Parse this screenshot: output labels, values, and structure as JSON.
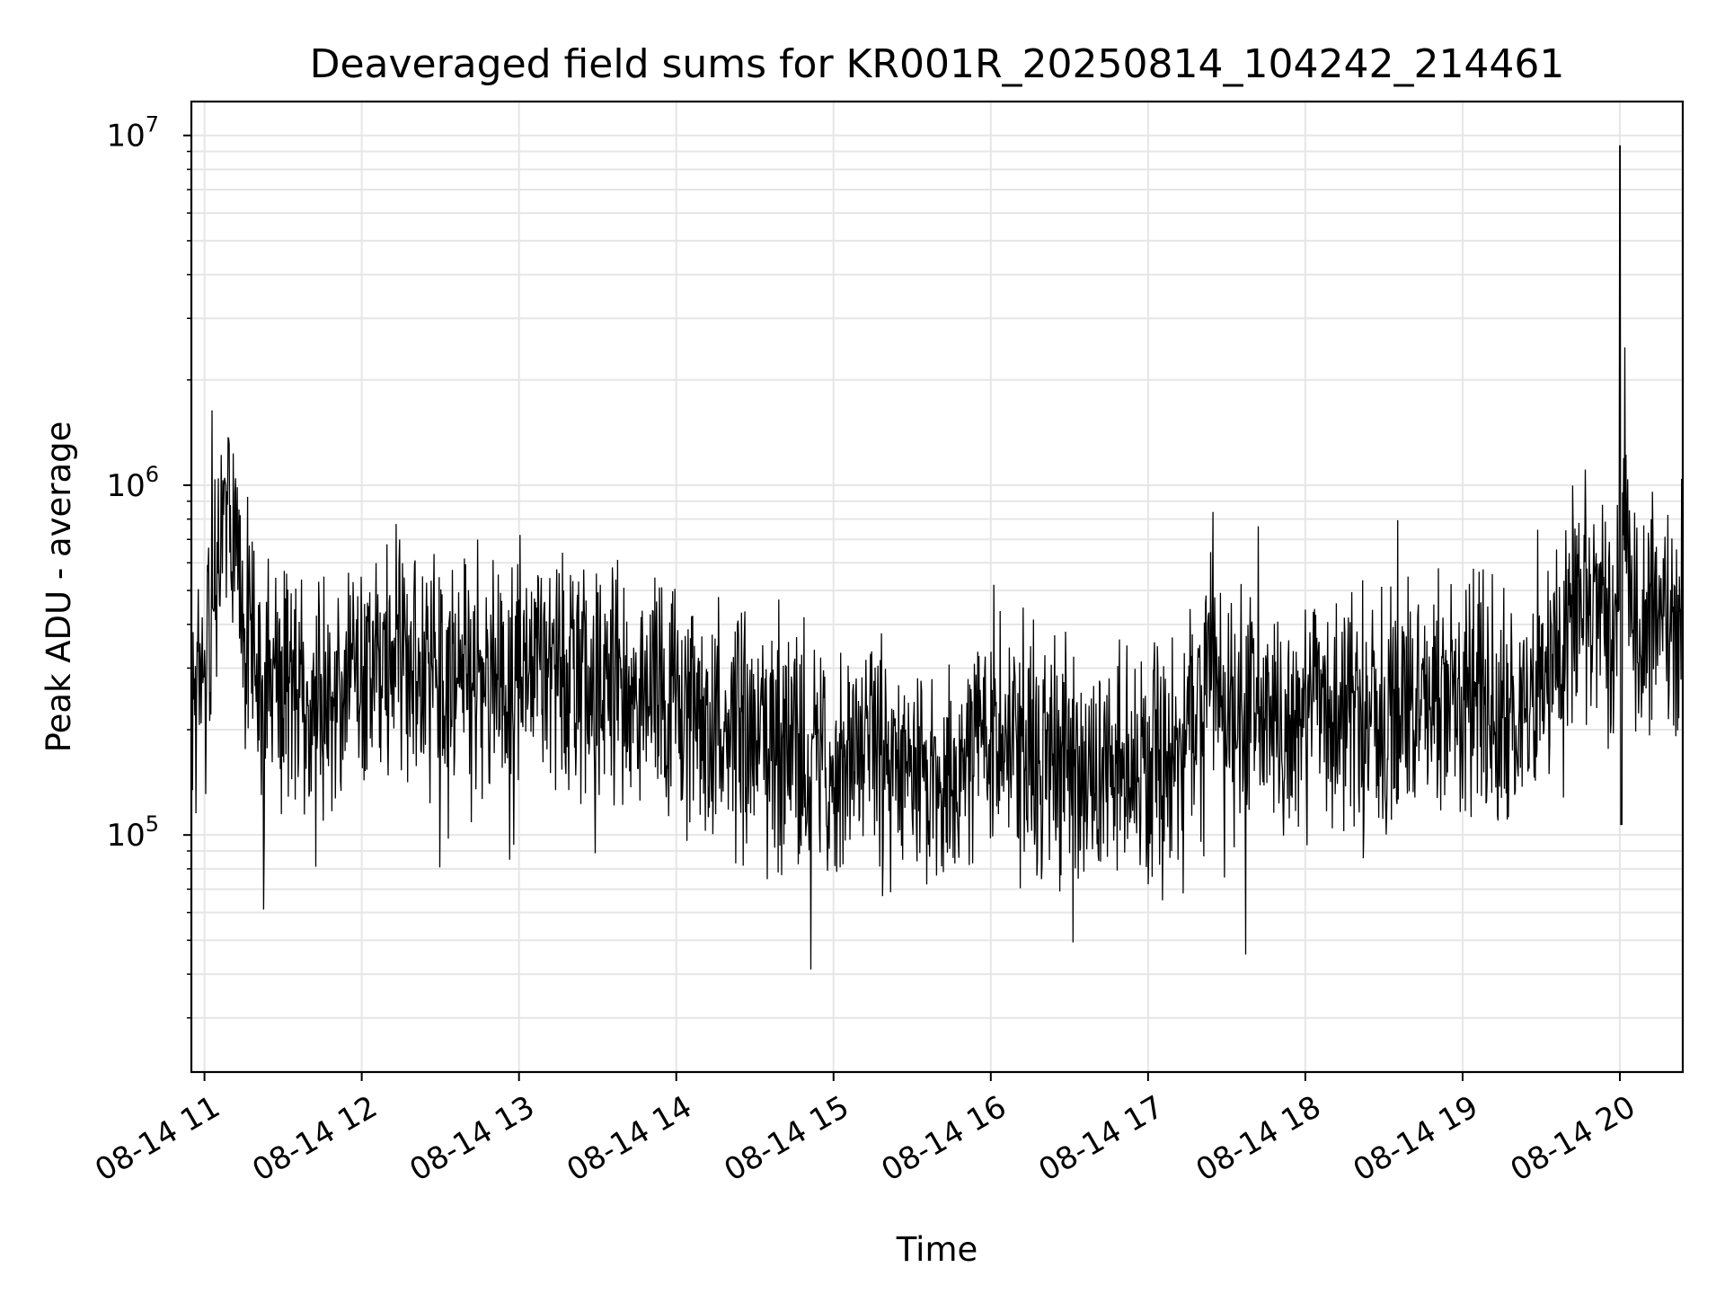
{
  "chart_data": {
    "type": "line",
    "title": "Deaveraged field sums for KR001R_20250814_104242_214461",
    "xlabel": "Time",
    "ylabel": "Peak ADU - average",
    "x_domain": [
      "2025-08-14T10:55:00",
      "2025-08-14T20:24:00"
    ],
    "xlim": [
      "08-14 10:55",
      "08-14 20:24"
    ],
    "ylim": [
      21000,
      12500000
    ],
    "yscale": "log",
    "grid": true,
    "legend": "none",
    "line_color": "#000000",
    "x_ticks": [
      "08-14 11",
      "08-14 12",
      "08-14 13",
      "08-14 14",
      "08-14 15",
      "08-14 16",
      "08-14 17",
      "08-14 18",
      "08-14 19",
      "08-14 20"
    ],
    "x_tick_hours": [
      11,
      12,
      13,
      14,
      15,
      16,
      17,
      18,
      19,
      20
    ],
    "y_ticks": [
      {
        "value": 100000,
        "base": "10",
        "exp": "5"
      },
      {
        "value": 1000000,
        "base": "10",
        "exp": "6"
      },
      {
        "value": 10000000,
        "base": "10",
        "exp": "7"
      }
    ],
    "series": [
      {
        "x_hours": [
          10.92,
          11.0,
          11.05,
          11.1,
          11.15,
          11.2,
          11.3,
          11.4,
          11.5,
          11.6,
          11.7,
          11.8,
          11.9,
          12.0,
          12.2,
          12.4,
          12.6,
          12.8,
          13.0,
          13.2,
          13.4,
          13.6,
          13.8,
          14.0,
          14.2,
          14.4,
          14.6,
          14.8,
          15.0,
          15.2,
          15.4,
          15.6,
          15.7,
          15.8,
          15.9,
          16.0,
          16.2,
          16.4,
          16.6,
          16.8,
          17.0,
          17.2,
          17.35,
          17.42,
          17.5,
          17.7,
          17.9,
          18.1,
          18.3,
          18.5,
          18.7,
          18.9,
          19.1,
          19.3,
          19.5,
          19.6,
          19.7,
          19.8,
          19.9,
          20.0,
          20.03,
          20.1,
          20.2,
          20.3,
          20.4
        ],
        "y": [
          250000,
          270000,
          400000,
          750000,
          800000,
          600000,
          360000,
          280000,
          260000,
          240000,
          250000,
          260000,
          280000,
          320000,
          330000,
          300000,
          280000,
          260000,
          300000,
          290000,
          280000,
          260000,
          260000,
          250000,
          200000,
          190000,
          180000,
          170000,
          160000,
          175000,
          160000,
          140000,
          120000,
          170000,
          200000,
          190000,
          170000,
          160000,
          150000,
          160000,
          140000,
          180000,
          220000,
          350000,
          210000,
          220000,
          210000,
          220000,
          230000,
          230000,
          240000,
          240000,
          250000,
          230000,
          240000,
          290000,
          420000,
          400000,
          380000,
          400000,
          900000,
          430000,
          440000,
          420000,
          400000
        ]
      }
    ]
  }
}
